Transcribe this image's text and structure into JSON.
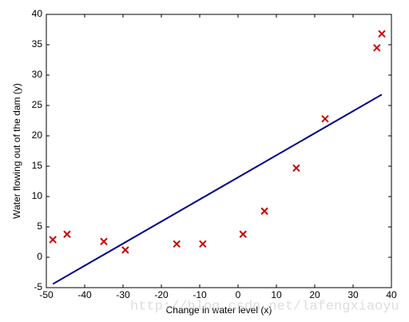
{
  "chart_data": {
    "type": "scatter",
    "xlabel": "Change in water level (x)",
    "ylabel": "Water flowing out of the dam (y)",
    "watermark": "http://blog.csdn.net/lafengxiaoyu",
    "points": {
      "color": "#cc0000",
      "x": [
        -48.3,
        -44.6,
        -35.0,
        -29.4,
        -16.0,
        -9.2,
        1.3,
        6.9,
        15.2,
        22.7,
        36.2,
        37.5
      ],
      "y": [
        2.9,
        3.8,
        2.6,
        1.2,
        2.2,
        2.2,
        3.8,
        7.6,
        14.7,
        22.8,
        34.5,
        36.8
      ]
    },
    "fit_line": {
      "color": "#00008b",
      "x": [
        -48.3,
        37.5
      ],
      "y": [
        -4.4,
        26.8
      ]
    },
    "xlim": [
      -50,
      40
    ],
    "xticks": [
      -50,
      -40,
      -30,
      -20,
      -10,
      0,
      10,
      20,
      30,
      40
    ],
    "ylim": [
      -5,
      40
    ],
    "yticks": [
      -5,
      0,
      5,
      10,
      15,
      20,
      25,
      30,
      35,
      40
    ]
  }
}
